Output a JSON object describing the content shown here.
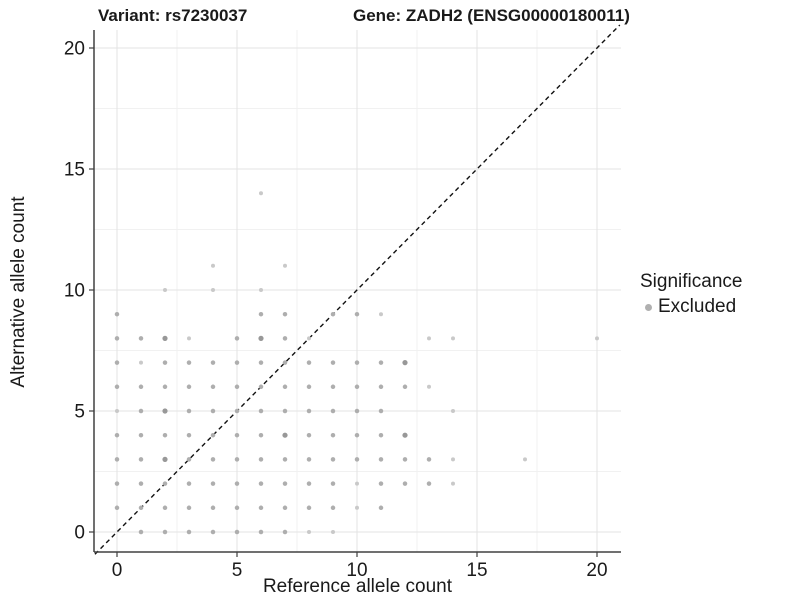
{
  "titles": {
    "left": "Variant: rs7230037",
    "right": "Gene: ZADH2 (ENSG00000180011)"
  },
  "legend": {
    "title": "Significance",
    "items": [
      {
        "label": "Excluded",
        "color": "#b0b0b0"
      }
    ]
  },
  "colors": {
    "point_normal": "#aeaeae",
    "point_light": "#c9c9c9",
    "point_dark": "#989898",
    "grid_major": "#e3e3e3",
    "grid_minor": "#f1f1f1",
    "axis_line": "#404040",
    "identity_line": "#111111",
    "text": "#1a1a1a"
  },
  "chart_data": {
    "type": "scatter",
    "title": "Variant: rs7230037   Gene: ZADH2 (ENSG00000180011)",
    "xlabel": "Reference allele count",
    "ylabel": "Alternative allele count",
    "xlim": [
      -1,
      21
    ],
    "ylim": [
      -1,
      21
    ],
    "x_ticks": [
      0,
      5,
      10,
      15,
      20
    ],
    "y_ticks": [
      0,
      5,
      10,
      15,
      20
    ],
    "x_minor_ticks": [
      2.5,
      7.5,
      12.5,
      17.5
    ],
    "y_minor_ticks": [
      2.5,
      7.5,
      12.5,
      17.5
    ],
    "grid": true,
    "legend_position": "right",
    "identity_line": {
      "style": "dashed",
      "slope": 1,
      "intercept": 0
    },
    "series": [
      {
        "name": "Excluded",
        "color": "#aeaeae",
        "points": [
          [
            1,
            0
          ],
          [
            2,
            0
          ],
          [
            3,
            0
          ],
          [
            4,
            0
          ],
          [
            5,
            0
          ],
          [
            6,
            0
          ],
          [
            7,
            0
          ],
          [
            8,
            0,
            "l"
          ],
          [
            9,
            0,
            "l"
          ],
          [
            0,
            1
          ],
          [
            1,
            1
          ],
          [
            2,
            1
          ],
          [
            3,
            1
          ],
          [
            4,
            1
          ],
          [
            5,
            1
          ],
          [
            6,
            1
          ],
          [
            7,
            1
          ],
          [
            8,
            1
          ],
          [
            9,
            1
          ],
          [
            10,
            1,
            "l"
          ],
          [
            11,
            1
          ],
          [
            0,
            2
          ],
          [
            1,
            2
          ],
          [
            2,
            2
          ],
          [
            3,
            2
          ],
          [
            4,
            2
          ],
          [
            5,
            2
          ],
          [
            6,
            2
          ],
          [
            7,
            2
          ],
          [
            8,
            2
          ],
          [
            9,
            2
          ],
          [
            10,
            2,
            "l"
          ],
          [
            11,
            2
          ],
          [
            12,
            2
          ],
          [
            13,
            2
          ],
          [
            14,
            2,
            "l"
          ],
          [
            0,
            3
          ],
          [
            1,
            3
          ],
          [
            2,
            3,
            "d"
          ],
          [
            3,
            3
          ],
          [
            4,
            3
          ],
          [
            5,
            3
          ],
          [
            6,
            3
          ],
          [
            7,
            3
          ],
          [
            8,
            3
          ],
          [
            9,
            3
          ],
          [
            10,
            3
          ],
          [
            11,
            3
          ],
          [
            12,
            3
          ],
          [
            13,
            3
          ],
          [
            14,
            3,
            "l"
          ],
          [
            17,
            3,
            "l"
          ],
          [
            0,
            4
          ],
          [
            1,
            4
          ],
          [
            2,
            4
          ],
          [
            3,
            4
          ],
          [
            4,
            4
          ],
          [
            5,
            4
          ],
          [
            6,
            4
          ],
          [
            7,
            4,
            "d"
          ],
          [
            8,
            4
          ],
          [
            9,
            4
          ],
          [
            10,
            4
          ],
          [
            11,
            4
          ],
          [
            12,
            4,
            "d"
          ],
          [
            0,
            5,
            "l"
          ],
          [
            1,
            5
          ],
          [
            2,
            5,
            "d"
          ],
          [
            3,
            5
          ],
          [
            4,
            5
          ],
          [
            5,
            5
          ],
          [
            6,
            5
          ],
          [
            7,
            5
          ],
          [
            8,
            5
          ],
          [
            9,
            5
          ],
          [
            10,
            5
          ],
          [
            11,
            5
          ],
          [
            14,
            5,
            "l"
          ],
          [
            0,
            6
          ],
          [
            1,
            6
          ],
          [
            2,
            6
          ],
          [
            3,
            6
          ],
          [
            4,
            6
          ],
          [
            5,
            6
          ],
          [
            6,
            6
          ],
          [
            7,
            6
          ],
          [
            8,
            6
          ],
          [
            9,
            6
          ],
          [
            10,
            6
          ],
          [
            11,
            6
          ],
          [
            12,
            6
          ],
          [
            13,
            6,
            "l"
          ],
          [
            0,
            7
          ],
          [
            1,
            7,
            "l"
          ],
          [
            2,
            7
          ],
          [
            3,
            7
          ],
          [
            4,
            7
          ],
          [
            5,
            7
          ],
          [
            6,
            7
          ],
          [
            7,
            7
          ],
          [
            8,
            7
          ],
          [
            9,
            7
          ],
          [
            10,
            7
          ],
          [
            11,
            7
          ],
          [
            12,
            7,
            "d"
          ],
          [
            0,
            8
          ],
          [
            1,
            8
          ],
          [
            2,
            8,
            "d"
          ],
          [
            3,
            8,
            "l"
          ],
          [
            5,
            8
          ],
          [
            6,
            8,
            "d"
          ],
          [
            7,
            8
          ],
          [
            8,
            8,
            "l"
          ],
          [
            13,
            8,
            "l"
          ],
          [
            14,
            8,
            "l"
          ],
          [
            20,
            8,
            "l"
          ],
          [
            0,
            9
          ],
          [
            6,
            9
          ],
          [
            7,
            9
          ],
          [
            9,
            9
          ],
          [
            10,
            9
          ],
          [
            11,
            9,
            "l"
          ],
          [
            2,
            10,
            "l"
          ],
          [
            4,
            10,
            "l"
          ],
          [
            6,
            10,
            "l"
          ],
          [
            4,
            11,
            "l"
          ],
          [
            7,
            11,
            "l"
          ],
          [
            6,
            14,
            "l"
          ]
        ]
      }
    ]
  }
}
